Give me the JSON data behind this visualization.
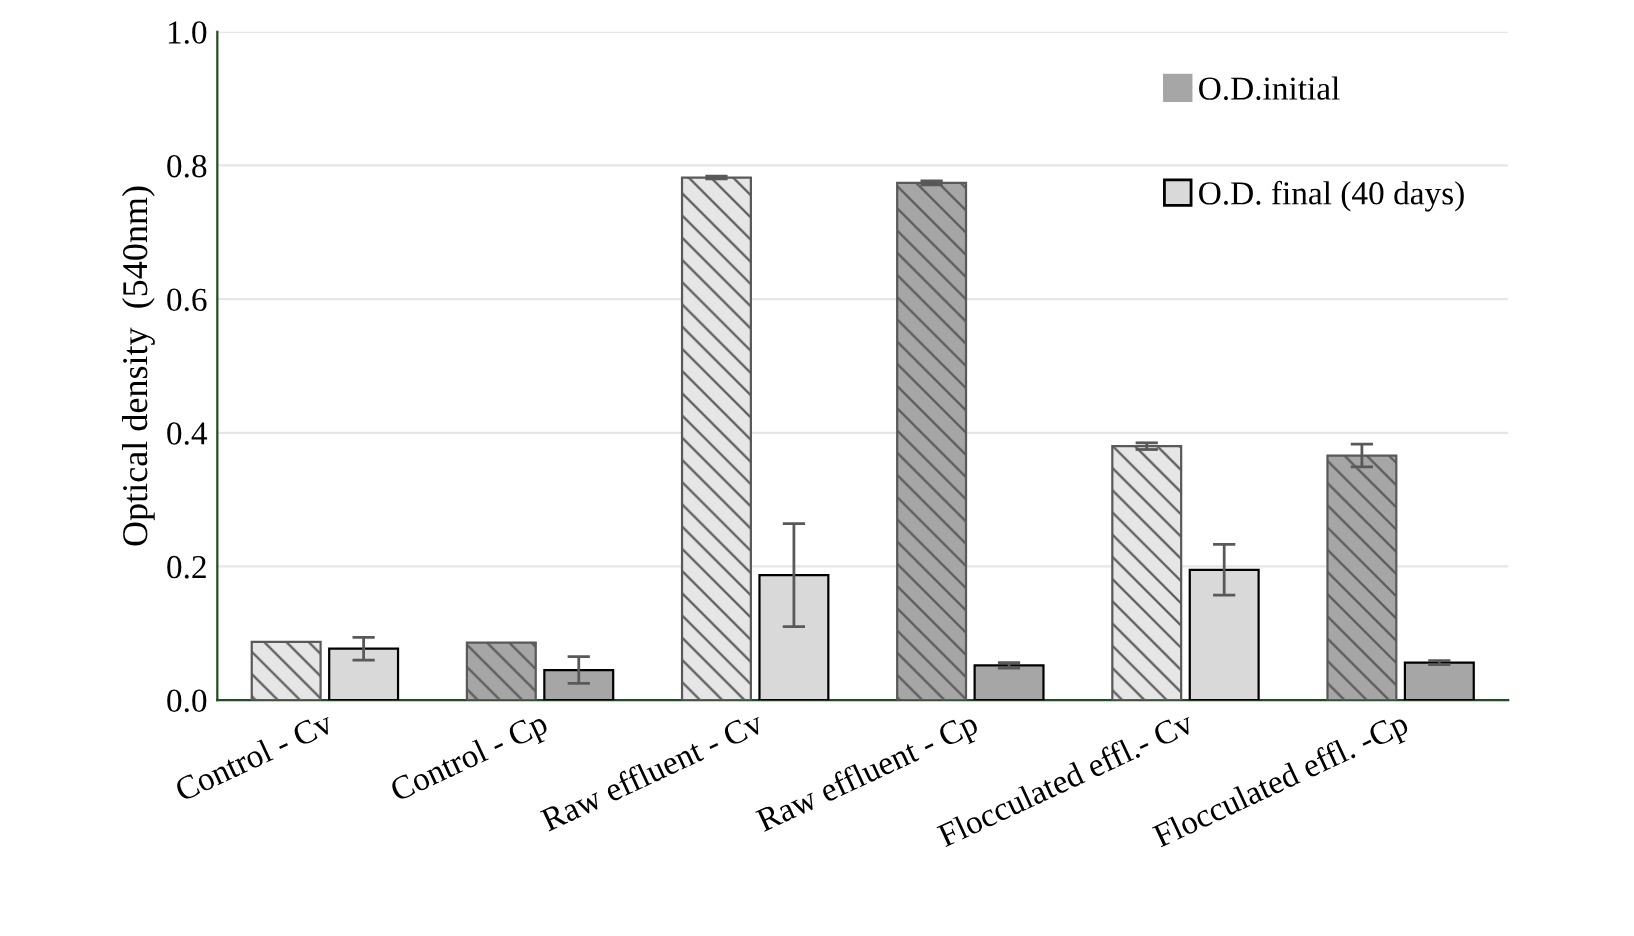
{
  "chart_data": {
    "type": "bar",
    "ylabel": "Optical density  (540nm)",
    "categories": [
      "Control - Cv",
      "Control - Cp",
      "Raw effluent - Cv",
      "Raw effluent - Cp",
      "Flocculated effl.- Cv",
      "Flocculated effl. -Cp"
    ],
    "series": [
      {
        "name": "O.D.initial",
        "color": "#a6a6a6",
        "colors": [
          "#e6e6e6",
          "#a6a6a6",
          "#e6e6e6",
          "#a6a6a6",
          "#e6e6e6",
          "#a6a6a6"
        ],
        "values": [
          0.087,
          0.086,
          0.782,
          0.774,
          0.38,
          0.366
        ],
        "errors": [
          null,
          null,
          0.002,
          0.003,
          0.005,
          0.017
        ]
      },
      {
        "name": "O.D. final (40 days)",
        "color": "#d9d9d9",
        "colors": [
          "#d9d9d9",
          "#a6a6a6",
          "#d9d9d9",
          "#a6a6a6",
          "#d9d9d9",
          "#a6a6a6"
        ],
        "values": [
          0.077,
          0.045,
          0.187,
          0.052,
          0.195,
          0.056
        ],
        "errors": [
          0.017,
          0.02,
          0.077,
          0.004,
          0.038,
          0.003
        ]
      }
    ],
    "ylim": [
      0,
      1.0
    ],
    "yticks": [
      {
        "value": 0,
        "label": "0.0"
      },
      {
        "value": 0.2,
        "label": "0.2"
      },
      {
        "value": 0.4,
        "label": "0.4"
      },
      {
        "value": 0.6,
        "label": "0.6"
      },
      {
        "value": 0.8,
        "label": "0.8"
      },
      {
        "value": 1.0,
        "label": "1.0"
      }
    ],
    "grid": "y",
    "legend": "top right"
  }
}
